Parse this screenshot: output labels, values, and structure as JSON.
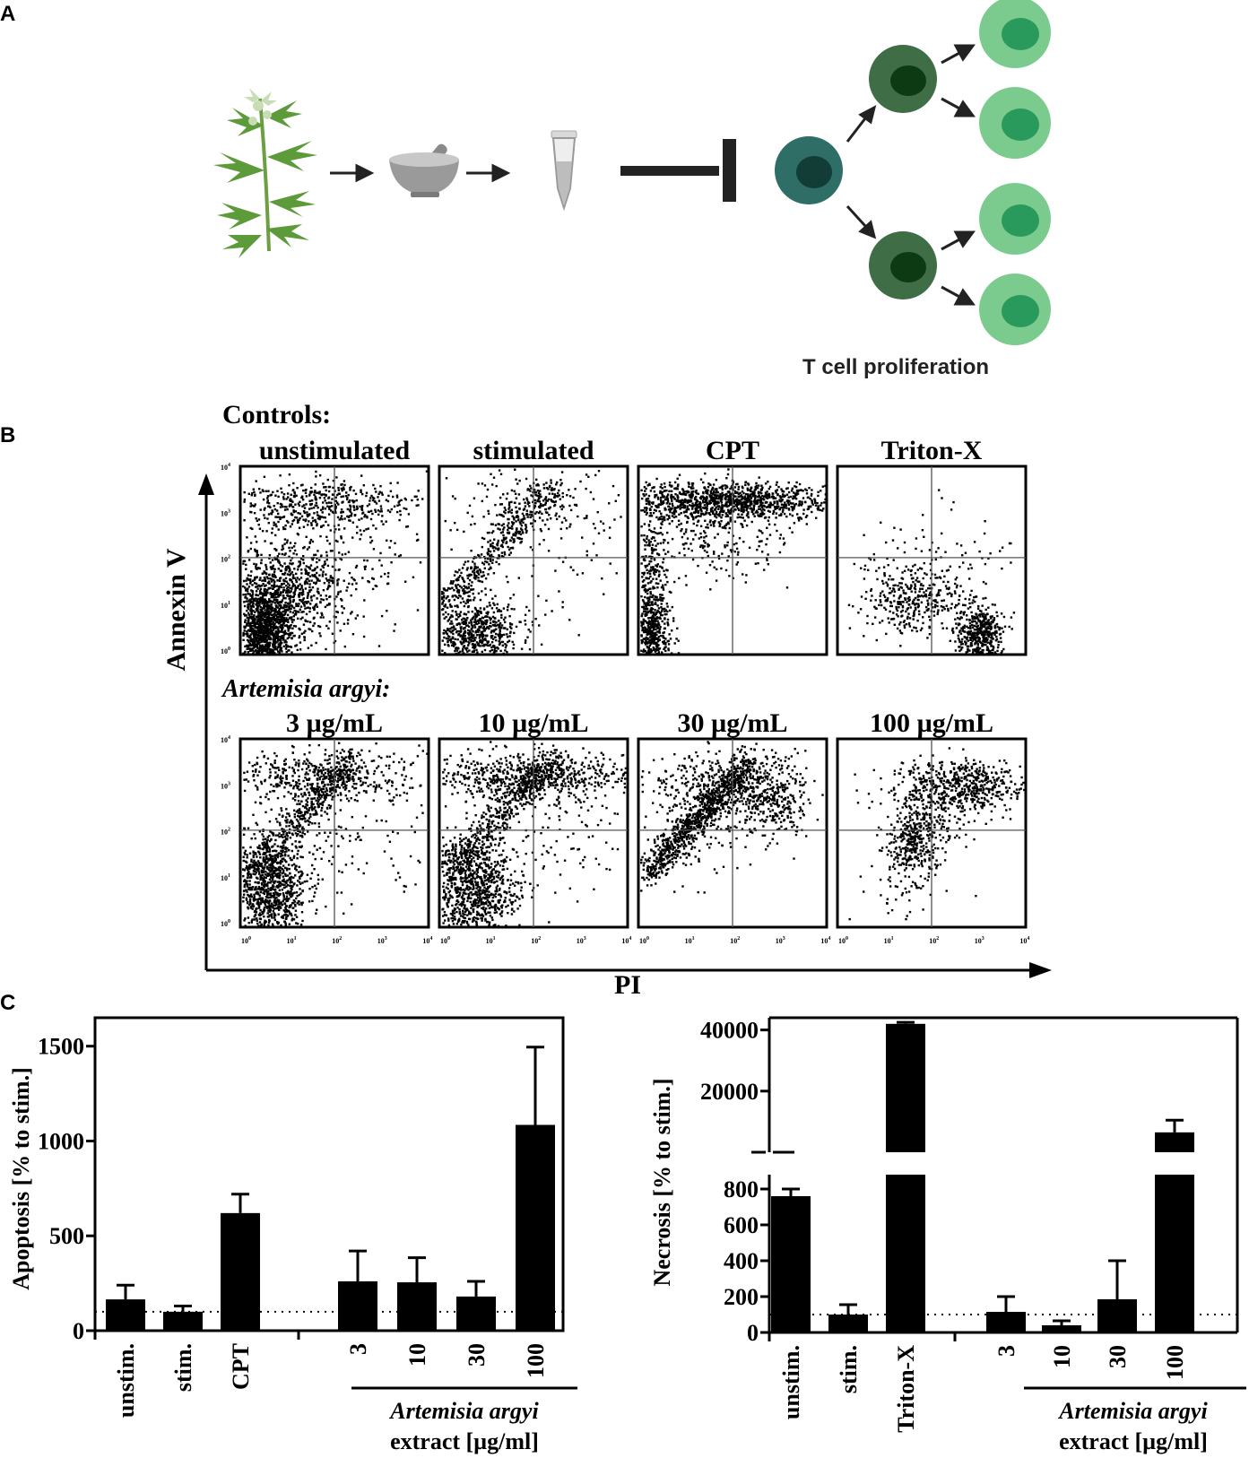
{
  "panels": {
    "a": "A",
    "b": "B",
    "c": "C"
  },
  "schematic": {
    "caption": "T cell proliferation",
    "colors": {
      "naive": "#2e6e66",
      "naive_nucleus": "#123c36",
      "mid": "#3f6e46",
      "mid_nucleus": "#0d3a13",
      "daughter": "#7ccb8e",
      "daughter_nucleus": "#2a9a5c",
      "plant": "#5c9a3a"
    }
  },
  "flow": {
    "controls_heading": "Controls:",
    "controls": [
      "unstimulated",
      "stimulated",
      "CPT",
      "Triton-X"
    ],
    "extract_heading": "Artemisia argyi:",
    "doses": [
      "3 µg/mL",
      "10 µg/mL",
      "30 µg/mL",
      "100 µg/mL"
    ],
    "y_axis": "Annexin V",
    "x_axis": "PI",
    "tick_exponents": [
      "0",
      "1",
      "2",
      "3",
      "4"
    ]
  },
  "chart_data": [
    {
      "type": "bar",
      "name": "apoptosis",
      "categories": [
        "unstim.",
        "stim.",
        "CPT",
        "3",
        "10",
        "30",
        "100"
      ],
      "values": [
        165,
        100,
        620,
        260,
        255,
        180,
        1085
      ],
      "errors": [
        75,
        30,
        100,
        160,
        130,
        80,
        410
      ],
      "ylabel": "Apoptosis [% to stim.]",
      "ylim": [
        0,
        1650
      ],
      "yticks": [
        "0",
        "500",
        "1000",
        "1500"
      ],
      "yticks_values": [
        0,
        500,
        1000,
        1500
      ],
      "reference_line": 100,
      "group_label_1": "Artemisia argyi",
      "group_label_2": "extract [µg/ml]"
    },
    {
      "type": "bar",
      "name": "necrosis",
      "categories": [
        "unstim.",
        "stim.",
        "Triton-X",
        "3",
        "10",
        "30",
        "100"
      ],
      "values": [
        760,
        100,
        42000,
        115,
        40,
        185,
        6500
      ],
      "errors": [
        40,
        55,
        500,
        85,
        25,
        215,
        4000
      ],
      "ylabel": "Necrosis [% to stim.]",
      "ylim_lower": [
        0,
        880
      ],
      "ylim_upper": [
        0,
        44000
      ],
      "yticks_lower": [
        "0",
        "200",
        "400",
        "600",
        "800"
      ],
      "yticks_lower_values": [
        0,
        200,
        400,
        600,
        800
      ],
      "yticks_upper": [
        "20000",
        "40000"
      ],
      "yticks_upper_values": [
        20000,
        40000
      ],
      "reference_line": 100,
      "group_label_1": "Artemisia argyi",
      "group_label_2": "extract [µg/ml]"
    }
  ]
}
